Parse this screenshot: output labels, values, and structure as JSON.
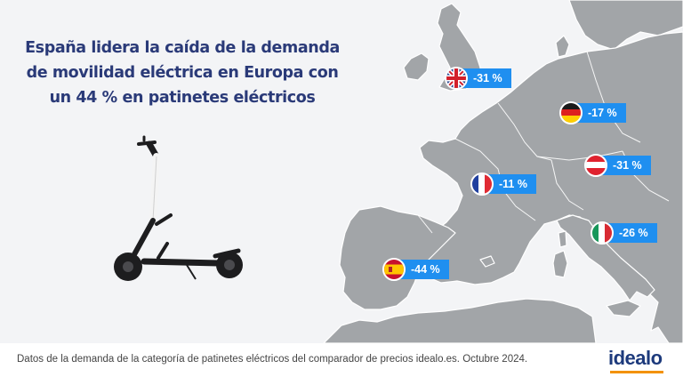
{
  "headline": {
    "line1": "España lidera la caída de la demanda",
    "line2": "de movilidad eléctrica en Europa con",
    "line3": "un  44 % en patinetes eléctricos"
  },
  "countries": [
    {
      "name": "Reino Unido",
      "flag": "uk-flag-icon",
      "value": "-31 %"
    },
    {
      "name": "Alemania",
      "flag": "germany-flag-icon",
      "value": "-17 %"
    },
    {
      "name": "Austria",
      "flag": "austria-flag-icon",
      "value": "-31 %"
    },
    {
      "name": "Francia",
      "flag": "france-flag-icon",
      "value": "-11 %"
    },
    {
      "name": "Italia",
      "flag": "italy-flag-icon",
      "value": "-26 %"
    },
    {
      "name": "España",
      "flag": "spain-flag-icon",
      "value": "-44 %"
    }
  ],
  "footer": {
    "note": "Datos de la demanda de la categoría de patinetes eléctricos del comparador de precios idealo.es. Octubre 2024.",
    "logo": "idealo"
  },
  "colors": {
    "headline": "#2a3a78",
    "badge": "#1f8ff0",
    "land": "#a2a5a8",
    "background": "#f3f4f6",
    "logo_accent": "#f39200"
  }
}
